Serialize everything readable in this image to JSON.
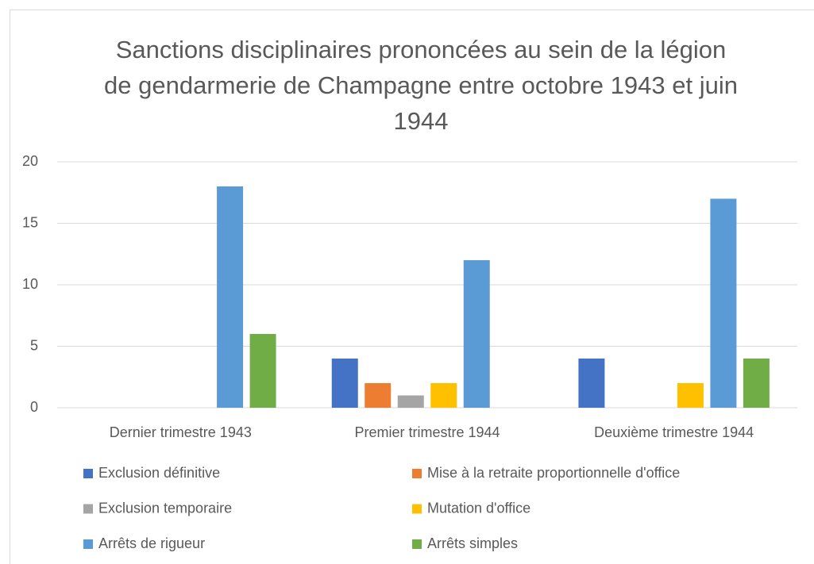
{
  "chart_data": {
    "type": "bar",
    "title": "Sanctions disciplinaires prononcées au sein de la légion de gendarmerie de Champagne entre octobre 1943 et juin 1944",
    "categories": [
      "Dernier trimestre 1943",
      "Premier trimestre 1944",
      "Deuxième trimestre 1944"
    ],
    "series": [
      {
        "name": "Exclusion définitive",
        "color": "#4472c4",
        "values": [
          0,
          4,
          4
        ]
      },
      {
        "name": "Mise à la retraite proportionnelle d'office",
        "color": "#ed7d31",
        "values": [
          0,
          2,
          0
        ]
      },
      {
        "name": "Exclusion temporaire",
        "color": "#a5a5a5",
        "values": [
          0,
          1,
          0
        ]
      },
      {
        "name": "Mutation d'office",
        "color": "#ffc000",
        "values": [
          0,
          2,
          2
        ]
      },
      {
        "name": "Arrêts de rigueur",
        "color": "#5b9bd5",
        "values": [
          18,
          12,
          17
        ]
      },
      {
        "name": "Arrêts simples",
        "color": "#70ad47",
        "values": [
          6,
          0,
          4
        ]
      }
    ],
    "ylim": [
      0,
      20
    ],
    "yticks": [
      0,
      5,
      10,
      15,
      20
    ],
    "grid": true,
    "legend": "bottom"
  }
}
